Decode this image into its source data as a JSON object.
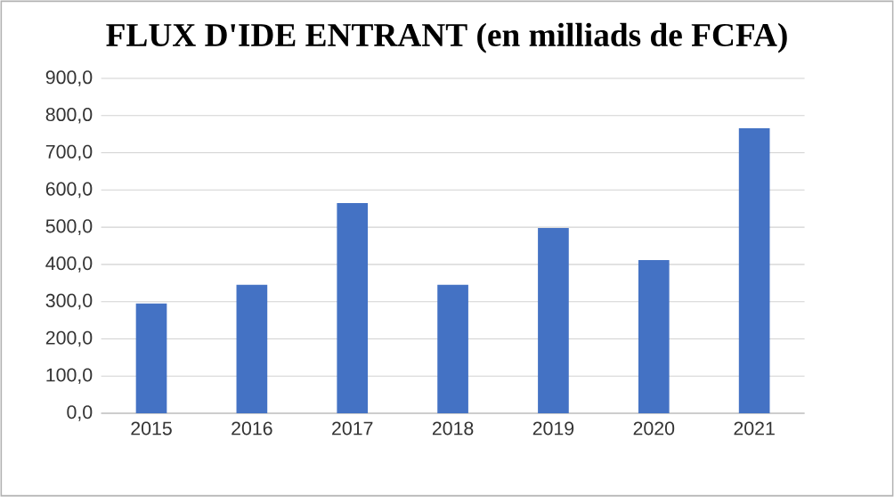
{
  "chart_data": {
    "type": "bar",
    "title": "FLUX D'IDE ENTRANT (en milliads de FCFA)",
    "categories": [
      "2015",
      "2016",
      "2017",
      "2018",
      "2019",
      "2020",
      "2021"
    ],
    "values": [
      295,
      345,
      565,
      345,
      498,
      412,
      766
    ],
    "color": "#4472c4",
    "ylim": [
      0,
      900
    ],
    "yticks": [
      {
        "value": 0,
        "label": "0,0"
      },
      {
        "value": 100,
        "label": "100,0"
      },
      {
        "value": 200,
        "label": "200,0"
      },
      {
        "value": 300,
        "label": "300,0"
      },
      {
        "value": 400,
        "label": "400,0"
      },
      {
        "value": 500,
        "label": "500,0"
      },
      {
        "value": 600,
        "label": "600,0"
      },
      {
        "value": 700,
        "label": "700,0"
      },
      {
        "value": 800,
        "label": "800,0"
      },
      {
        "value": 900,
        "label": "900,0"
      }
    ],
    "grid": "y"
  }
}
